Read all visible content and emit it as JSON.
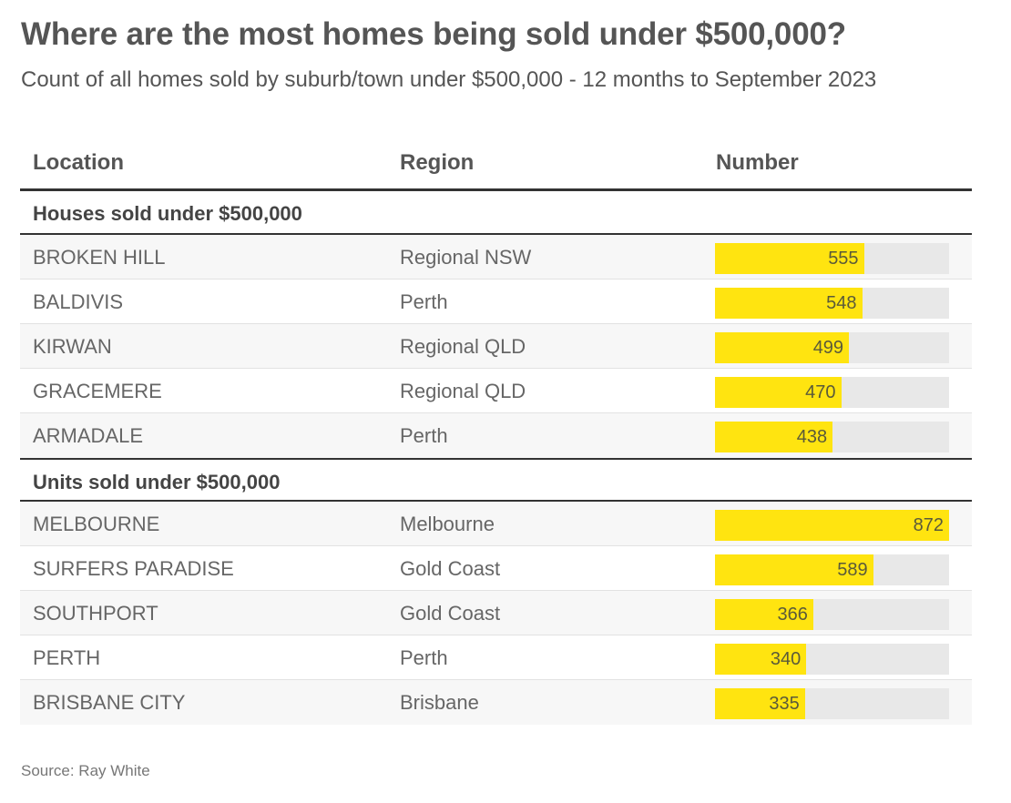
{
  "title": "Where are the most homes being sold under $500,000?",
  "subtitle": "Count of all homes sold by suburb/town under $500,000 - 12 months to September 2023",
  "columns": [
    "Location",
    "Region",
    "Number"
  ],
  "source": "Source: Ray White",
  "colors": {
    "bar": "#ffe410",
    "track": "#e8e8e8",
    "text": "#555555"
  },
  "chart_data": {
    "type": "table",
    "title": "Where are the most homes being sold under $500,000?",
    "subtitle": "Count of all homes sold by suburb/town under $500,000 - 12 months to September 2023",
    "columns": [
      "Location",
      "Region",
      "Number"
    ],
    "max": 872,
    "groups": [
      {
        "label": "Houses sold under $500,000",
        "rows": [
          {
            "location": "BROKEN HILL",
            "region": "Regional NSW",
            "value": 555
          },
          {
            "location": "BALDIVIS",
            "region": "Perth",
            "value": 548
          },
          {
            "location": "KIRWAN",
            "region": "Regional QLD",
            "value": 499
          },
          {
            "location": "GRACEMERE",
            "region": "Regional QLD",
            "value": 470
          },
          {
            "location": "ARMADALE",
            "region": "Perth",
            "value": 438
          }
        ]
      },
      {
        "label": "Units sold under $500,000",
        "rows": [
          {
            "location": "MELBOURNE",
            "region": "Melbourne",
            "value": 872
          },
          {
            "location": "SURFERS PARADISE",
            "region": "Gold Coast",
            "value": 589
          },
          {
            "location": "SOUTHPORT",
            "region": "Gold Coast",
            "value": 366
          },
          {
            "location": "PERTH",
            "region": "Perth",
            "value": 340
          },
          {
            "location": "BRISBANE CITY",
            "region": "Brisbane",
            "value": 335
          }
        ]
      }
    ],
    "source": "Source: Ray White"
  }
}
